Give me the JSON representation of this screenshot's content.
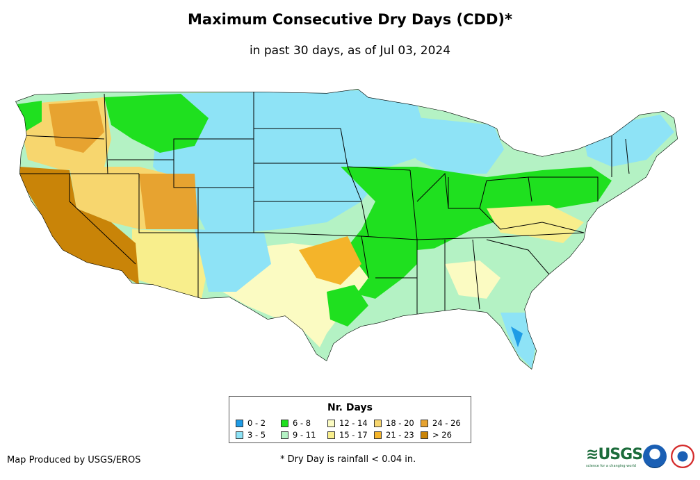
{
  "header": {
    "title": "Maximum Consecutive Dry Days (CDD)*",
    "subtitle": "in past 30 days, as of Jul 03, 2024"
  },
  "legend": {
    "title": "Nr. Days",
    "items": [
      {
        "label": "0 - 2",
        "color": "#1e9be6"
      },
      {
        "label": "3 - 5",
        "color": "#8ee3f6"
      },
      {
        "label": "6 - 8",
        "color": "#1fe01f"
      },
      {
        "label": "9 - 11",
        "color": "#b4f2c4"
      },
      {
        "label": "12 - 14",
        "color": "#fbfbc2"
      },
      {
        "label": "15 - 17",
        "color": "#f8ee8c"
      },
      {
        "label": "18 - 20",
        "color": "#f7d66e"
      },
      {
        "label": "21 - 23",
        "color": "#f4b42a"
      },
      {
        "label": "24 - 26",
        "color": "#e7a330"
      },
      {
        "label": "> 26",
        "color": "#c98408"
      }
    ]
  },
  "footer": {
    "credit": "Map Produced by USGS/EROS",
    "footnote": "* Dry Day is rainfall < 0.04 in.",
    "logo_text": "USGS",
    "logo_tagline": "science for a changing world"
  }
}
